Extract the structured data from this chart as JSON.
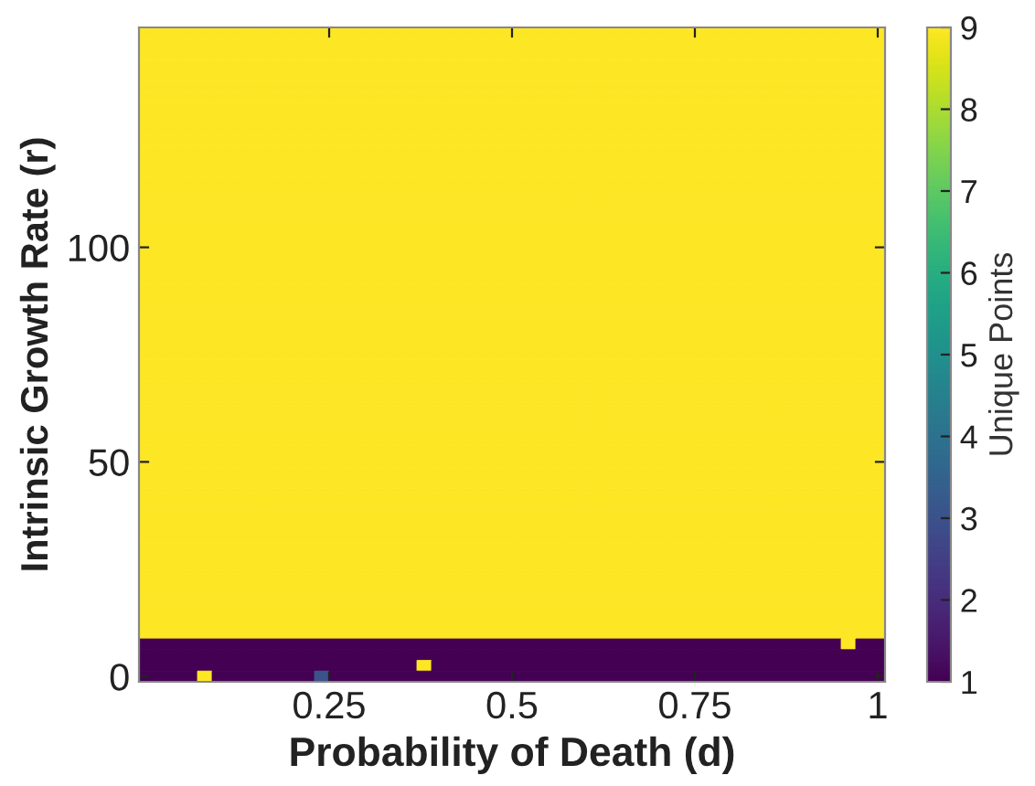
{
  "chart_data": {
    "type": "heatmap",
    "xlabel": "Probability of Death (d)",
    "ylabel": "Intrinsic Growth Rate (r)",
    "clabel": "Unique Points",
    "x": [
      0,
      0.02,
      0.04,
      0.06,
      0.08,
      0.1,
      0.12,
      0.14,
      0.16,
      0.18,
      0.2,
      0.22,
      0.24,
      0.26,
      0.28,
      0.3,
      0.32,
      0.34,
      0.36,
      0.38,
      0.4,
      0.42,
      0.44,
      0.46,
      0.48,
      0.5,
      0.52,
      0.54,
      0.56,
      0.58,
      0.6,
      0.62,
      0.64,
      0.66,
      0.68,
      0.7,
      0.72,
      0.74,
      0.76,
      0.78,
      0.8,
      0.82,
      0.84,
      0.86,
      0.88,
      0.9,
      0.92,
      0.94,
      0.96,
      0.98,
      1
    ],
    "xlim": [
      -0.01,
      1.01
    ],
    "xticks": [
      0.25,
      0.5,
      0.75,
      1
    ],
    "ylim": [
      -1.25,
      151.25
    ],
    "yticks": [
      0,
      50,
      100
    ],
    "clim": [
      1,
      9
    ],
    "cticks": [
      1,
      2,
      3,
      4,
      5,
      6,
      7,
      8,
      9
    ],
    "cells": [
      [
        9,
        9,
        9,
        9,
        9,
        9,
        9,
        9,
        9,
        9,
        9,
        9,
        9,
        9,
        9,
        9,
        9,
        9,
        9,
        9,
        9,
        9,
        9,
        9,
        9,
        9,
        9,
        9,
        9,
        9,
        9,
        9,
        9,
        9,
        9,
        9,
        9,
        9,
        9,
        9,
        9,
        9,
        9,
        9,
        9,
        9,
        9,
        9,
        9,
        9,
        9
      ],
      [
        9,
        9,
        9,
        9,
        9,
        9,
        9,
        9,
        9,
        9,
        9,
        9,
        9,
        9,
        9,
        9,
        9,
        9,
        9,
        9,
        9,
        9,
        9,
        9,
        9,
        9,
        9,
        9,
        9,
        9,
        9,
        9,
        9,
        9,
        9,
        9,
        9,
        9,
        9,
        9,
        9,
        9,
        9,
        9,
        9,
        9,
        9,
        9,
        9,
        9,
        9
      ],
      [
        9,
        9,
        9,
        9,
        9,
        9,
        9,
        9,
        9,
        9,
        9,
        9,
        9,
        9,
        9,
        9,
        9,
        9,
        9,
        9,
        9,
        9,
        9,
        9,
        9,
        9,
        9,
        9,
        9,
        9,
        9,
        9,
        9,
        9,
        9,
        9,
        9,
        9,
        9,
        9,
        9,
        9,
        9,
        9,
        9,
        9,
        9,
        9,
        9,
        9,
        9
      ],
      [
        9,
        9,
        9,
        9,
        9,
        9,
        9,
        9,
        9,
        9,
        9,
        9,
        9,
        9,
        9,
        9,
        9,
        9,
        9,
        9,
        9,
        9,
        9,
        9,
        9,
        9,
        9,
        9,
        9,
        9,
        9,
        9,
        9,
        9,
        9,
        9,
        9,
        9,
        9,
        9,
        9,
        9,
        9,
        9,
        9,
        9,
        9,
        9,
        9,
        9,
        9
      ],
      [
        9,
        9,
        9,
        9,
        9,
        9,
        9,
        9,
        9,
        9,
        9,
        9,
        9,
        9,
        9,
        9,
        9,
        9,
        9,
        9,
        9,
        9,
        9,
        9,
        9,
        9,
        9,
        9,
        9,
        9,
        9,
        9,
        9,
        9,
        9,
        9,
        9,
        9,
        9,
        9,
        9,
        9,
        9,
        9,
        9,
        9,
        9,
        9,
        9,
        9,
        9
      ],
      [
        9,
        9,
        9,
        9,
        9,
        9,
        9,
        9,
        9,
        9,
        9,
        9,
        9,
        9,
        9,
        9,
        9,
        9,
        9,
        9,
        9,
        9,
        9,
        9,
        9,
        9,
        9,
        9,
        9,
        9,
        9,
        9,
        9,
        9,
        9,
        9,
        9,
        9,
        9,
        9,
        9,
        9,
        9,
        9,
        9,
        9,
        9,
        9,
        9,
        9,
        9
      ],
      [
        9,
        9,
        9,
        9,
        9,
        9,
        9,
        9,
        9,
        9,
        9,
        9,
        9,
        9,
        9,
        9,
        9,
        9,
        9,
        9,
        9,
        9,
        9,
        9,
        9,
        9,
        9,
        9,
        9,
        9,
        9,
        9,
        9,
        9,
        9,
        9,
        9,
        9,
        9,
        9,
        9,
        9,
        9,
        9,
        9,
        9,
        9,
        9,
        9,
        9,
        9
      ],
      [
        9,
        9,
        9,
        9,
        9,
        9,
        9,
        9,
        9,
        9,
        9,
        9,
        9,
        9,
        9,
        9,
        9,
        9,
        9,
        9,
        9,
        9,
        9,
        9,
        9,
        9,
        9,
        9,
        9,
        9,
        9,
        9,
        9,
        9,
        9,
        9,
        9,
        9,
        9,
        9,
        9,
        9,
        9,
        9,
        9,
        9,
        9,
        9,
        9,
        9,
        9
      ],
      [
        9,
        9,
        9,
        9,
        9,
        9,
        9,
        9,
        9,
        9,
        9,
        9,
        9,
        9,
        9,
        9,
        9,
        9,
        9,
        9,
        9,
        9,
        9,
        9,
        9,
        9,
        9,
        9,
        9,
        9,
        9,
        9,
        9,
        9,
        9,
        9,
        9,
        9,
        9,
        9,
        9,
        9,
        9,
        9,
        9,
        9,
        9,
        9,
        9,
        9,
        9
      ],
      [
        9,
        9,
        9,
        9,
        9,
        9,
        9,
        9,
        9,
        9,
        9,
        9,
        9,
        9,
        9,
        9,
        9,
        9,
        9,
        9,
        9,
        9,
        9,
        9,
        9,
        9,
        9,
        9,
        9,
        9,
        9,
        9,
        9,
        9,
        9,
        9,
        9,
        9,
        9,
        9,
        9,
        9,
        9,
        9,
        9,
        9,
        9,
        9,
        9,
        9,
        9
      ],
      [
        9,
        9,
        9,
        9,
        9,
        9,
        9,
        9,
        9,
        9,
        9,
        9,
        9,
        9,
        9,
        9,
        9,
        9,
        9,
        9,
        9,
        9,
        9,
        9,
        9,
        9,
        9,
        9,
        9,
        9,
        9,
        9,
        9,
        9,
        9,
        9,
        9,
        9,
        9,
        9,
        9,
        9,
        9,
        9,
        9,
        9,
        9,
        9,
        9,
        9,
        9
      ],
      [
        9,
        9,
        9,
        9,
        9,
        9,
        9,
        9,
        9,
        9,
        9,
        9,
        9,
        9,
        9,
        9,
        9,
        9,
        9,
        9,
        9,
        9,
        9,
        9,
        9,
        9,
        9,
        9,
        9,
        9,
        9,
        9,
        9,
        9,
        9,
        9,
        9,
        9,
        9,
        9,
        9,
        9,
        9,
        9,
        9,
        9,
        9,
        9,
        9,
        9,
        9
      ],
      [
        9,
        9,
        9,
        9,
        9,
        9,
        9,
        9,
        9,
        9,
        9,
        9,
        9,
        9,
        9,
        9,
        9,
        9,
        9,
        9,
        9,
        9,
        9,
        9,
        9,
        9,
        9,
        9,
        9,
        9,
        9,
        9,
        9,
        9,
        9,
        9,
        9,
        9,
        9,
        9,
        9,
        9,
        9,
        9,
        9,
        9,
        9,
        9,
        9,
        9,
        9
      ],
      [
        9,
        9,
        9,
        9,
        9,
        9,
        9,
        9,
        9,
        9,
        9,
        9,
        9,
        9,
        9,
        9,
        9,
        9,
        9,
        9,
        9,
        9,
        9,
        9,
        9,
        9,
        9,
        9,
        9,
        9,
        9,
        9,
        9,
        9,
        9,
        9,
        9,
        9,
        9,
        9,
        9,
        9,
        9,
        9,
        9,
        9,
        9,
        9,
        9,
        9,
        9
      ],
      [
        9,
        9,
        9,
        9,
        9,
        9,
        9,
        9,
        9,
        9,
        9,
        9,
        9,
        9,
        9,
        9,
        9,
        9,
        9,
        9,
        9,
        9,
        9,
        9,
        9,
        9,
        9,
        9,
        9,
        9,
        9,
        9,
        9,
        9,
        9,
        9,
        9,
        9,
        9,
        9,
        9,
        9,
        9,
        9,
        9,
        9,
        9,
        9,
        9,
        9,
        9
      ],
      [
        9,
        9,
        9,
        9,
        9,
        9,
        9,
        9,
        9,
        9,
        9,
        9,
        9,
        9,
        9,
        9,
        9,
        9,
        9,
        9,
        9,
        9,
        9,
        9,
        9,
        9,
        9,
        9,
        9,
        9,
        9,
        9,
        9,
        9,
        9,
        9,
        9,
        9,
        9,
        9,
        9,
        9,
        9,
        9,
        9,
        9,
        9,
        9,
        9,
        9,
        9
      ],
      [
        9,
        9,
        9,
        9,
        9,
        9,
        9,
        9,
        9,
        9,
        9,
        9,
        9,
        9,
        9,
        9,
        9,
        9,
        9,
        9,
        9,
        9,
        9,
        9,
        9,
        9,
        9,
        9,
        9,
        9,
        9,
        9,
        9,
        9,
        9,
        9,
        9,
        9,
        9,
        9,
        9,
        9,
        9,
        9,
        9,
        9,
        9,
        9,
        9,
        9,
        9
      ],
      [
        9,
        9,
        9,
        9,
        9,
        9,
        9,
        9,
        9,
        9,
        9,
        9,
        9,
        9,
        9,
        9,
        9,
        9,
        9,
        9,
        9,
        9,
        9,
        9,
        9,
        9,
        9,
        9,
        9,
        9,
        9,
        9,
        9,
        9,
        9,
        9,
        9,
        9,
        9,
        9,
        9,
        9,
        9,
        9,
        9,
        9,
        9,
        9,
        9,
        9,
        9
      ],
      [
        9,
        9,
        9,
        9,
        9,
        9,
        9,
        9,
        9,
        9,
        9,
        9,
        9,
        9,
        9,
        9,
        9,
        9,
        9,
        9,
        9,
        9,
        9,
        9,
        9,
        9,
        9,
        9,
        9,
        9,
        9,
        9,
        9,
        9,
        9,
        9,
        9,
        9,
        9,
        9,
        9,
        9,
        9,
        9,
        9,
        9,
        9,
        9,
        9,
        9,
        9
      ],
      [
        9,
        9,
        9,
        9,
        9,
        9,
        9,
        9,
        9,
        9,
        9,
        9,
        9,
        9,
        9,
        9,
        9,
        9,
        9,
        9,
        9,
        9,
        9,
        9,
        9,
        9,
        9,
        9,
        9,
        9,
        9,
        9,
        9,
        9,
        9,
        9,
        9,
        9,
        9,
        9,
        9,
        9,
        9,
        9,
        9,
        9,
        9,
        9,
        9,
        9,
        9
      ],
      [
        9,
        9,
        9,
        9,
        9,
        9,
        9,
        9,
        9,
        9,
        9,
        9,
        9,
        9,
        9,
        9,
        9,
        9,
        9,
        9,
        9,
        9,
        9,
        9,
        9,
        9,
        9,
        9,
        9,
        9,
        9,
        9,
        9,
        9,
        9,
        9,
        9,
        9,
        9,
        9,
        9,
        9,
        9,
        9,
        9,
        9,
        9,
        9,
        9,
        9,
        9
      ],
      [
        9,
        9,
        9,
        9,
        9,
        9,
        9,
        9,
        9,
        9,
        9,
        9,
        9,
        9,
        9,
        9,
        9,
        9,
        9,
        9,
        9,
        9,
        9,
        9,
        9,
        9,
        9,
        9,
        9,
        9,
        9,
        9,
        9,
        9,
        9,
        9,
        9,
        9,
        9,
        9,
        9,
        9,
        9,
        9,
        9,
        9,
        9,
        9,
        9,
        9,
        9
      ],
      [
        9,
        9,
        9,
        9,
        9,
        9,
        9,
        9,
        9,
        9,
        9,
        9,
        9,
        9,
        9,
        9,
        9,
        9,
        9,
        9,
        9,
        9,
        9,
        9,
        9,
        9,
        9,
        9,
        9,
        9,
        9,
        9,
        9,
        9,
        9,
        9,
        9,
        9,
        9,
        9,
        9,
        9,
        9,
        9,
        9,
        9,
        9,
        9,
        9,
        9,
        9
      ],
      [
        9,
        9,
        9,
        9,
        9,
        9,
        9,
        9,
        9,
        9,
        9,
        9,
        9,
        9,
        9,
        9,
        9,
        9,
        9,
        9,
        9,
        9,
        9,
        9,
        9,
        9,
        9,
        9,
        9,
        9,
        9,
        9,
        9,
        9,
        9,
        9,
        9,
        9,
        9,
        9,
        9,
        9,
        9,
        9,
        9,
        9,
        9,
        9,
        9,
        9,
        9
      ],
      [
        9,
        9,
        9,
        9,
        9,
        9,
        9,
        9,
        9,
        9,
        9,
        9,
        9,
        9,
        9,
        9,
        9,
        9,
        9,
        9,
        9,
        9,
        9,
        9,
        9,
        9,
        9,
        9,
        9,
        9,
        9,
        9,
        9,
        9,
        9,
        9,
        9,
        9,
        9,
        9,
        9,
        9,
        9,
        9,
        9,
        9,
        9,
        9,
        9,
        9,
        9
      ],
      [
        9,
        9,
        9,
        9,
        9,
        9,
        9,
        9,
        9,
        9,
        9,
        9,
        9,
        9,
        9,
        9,
        9,
        9,
        9,
        9,
        9,
        9,
        9,
        9,
        9,
        9,
        9,
        9,
        9,
        9,
        9,
        9,
        9,
        9,
        9,
        9,
        9,
        9,
        9,
        9,
        9,
        9,
        9,
        9,
        9,
        9,
        9,
        9,
        9,
        9,
        9
      ],
      [
        9,
        9,
        9,
        9,
        9,
        9,
        9,
        9,
        9,
        9,
        9,
        9,
        9,
        9,
        9,
        9,
        9,
        9,
        9,
        9,
        9,
        9,
        9,
        9,
        9,
        9,
        9,
        9,
        9,
        9,
        9,
        9,
        9,
        9,
        9,
        9,
        9,
        9,
        9,
        9,
        9,
        9,
        9,
        9,
        9,
        9,
        9,
        9,
        9,
        9,
        9
      ],
      [
        9,
        9,
        9,
        9,
        9,
        9,
        9,
        9,
        9,
        9,
        9,
        9,
        9,
        9,
        9,
        9,
        9,
        9,
        9,
        9,
        9,
        9,
        9,
        9,
        9,
        9,
        9,
        9,
        9,
        9,
        9,
        9,
        9,
        9,
        9,
        9,
        9,
        9,
        9,
        9,
        9,
        9,
        9,
        9,
        9,
        9,
        9,
        9,
        9,
        9,
        9
      ],
      [
        9,
        9,
        9,
        9,
        9,
        9,
        9,
        9,
        9,
        9,
        9,
        9,
        9,
        9,
        9,
        9,
        9,
        9,
        9,
        9,
        9,
        9,
        9,
        9,
        9,
        9,
        9,
        9,
        9,
        9,
        9,
        9,
        9,
        9,
        9,
        9,
        9,
        9,
        9,
        9,
        9,
        9,
        9,
        9,
        9,
        9,
        9,
        9,
        9,
        9,
        9
      ],
      [
        9,
        9,
        9,
        9,
        9,
        9,
        9,
        9,
        9,
        9,
        9,
        9,
        9,
        9,
        9,
        9,
        9,
        9,
        9,
        9,
        9,
        9,
        9,
        9,
        9,
        9,
        9,
        9,
        9,
        9,
        9,
        9,
        9,
        9,
        9,
        9,
        9,
        9,
        9,
        9,
        9,
        9,
        9,
        9,
        9,
        9,
        9,
        9,
        9,
        9,
        9
      ],
      [
        9,
        9,
        9,
        9,
        9,
        9,
        9,
        9,
        9,
        9,
        9,
        9,
        9,
        9,
        9,
        9,
        9,
        9,
        9,
        9,
        9,
        9,
        9,
        9,
        9,
        9,
        9,
        9,
        9,
        9,
        9,
        9,
        9,
        9,
        9,
        9,
        9,
        9,
        9,
        9,
        9,
        9,
        9,
        9,
        9,
        9,
        9,
        9,
        9,
        9,
        9
      ],
      [
        9,
        9,
        9,
        9,
        9,
        9,
        9,
        9,
        9,
        9,
        9,
        9,
        9,
        9,
        9,
        9,
        9,
        9,
        9,
        9,
        9,
        9,
        9,
        9,
        9,
        9,
        9,
        9,
        9,
        9,
        9,
        9,
        9,
        9,
        9,
        9,
        9,
        9,
        9,
        9,
        9,
        9,
        9,
        9,
        9,
        9,
        9,
        9,
        9,
        9,
        9
      ],
      [
        9,
        9,
        9,
        9,
        9,
        9,
        9,
        9,
        9,
        9,
        9,
        9,
        9,
        9,
        9,
        9,
        9,
        9,
        9,
        9,
        9,
        9,
        9,
        9,
        9,
        9,
        9,
        9,
        9,
        9,
        9,
        9,
        9,
        9,
        9,
        9,
        9,
        9,
        9,
        9,
        9,
        9,
        9,
        9,
        9,
        9,
        9,
        9,
        9,
        9,
        9
      ],
      [
        9,
        9,
        9,
        9,
        9,
        9,
        9,
        9,
        9,
        9,
        9,
        9,
        9,
        9,
        9,
        9,
        9,
        9,
        9,
        9,
        9,
        9,
        9,
        9,
        9,
        9,
        9,
        9,
        9,
        9,
        9,
        9,
        9,
        9,
        9,
        9,
        9,
        9,
        9,
        9,
        9,
        9,
        9,
        9,
        9,
        9,
        9,
        9,
        9,
        9,
        9
      ],
      [
        9,
        9,
        9,
        9,
        9,
        9,
        9,
        9,
        9,
        9,
        9,
        9,
        9,
        9,
        9,
        9,
        9,
        9,
        9,
        9,
        9,
        9,
        9,
        9,
        9,
        9,
        9,
        9,
        9,
        9,
        9,
        9,
        9,
        9,
        9,
        9,
        9,
        9,
        9,
        9,
        9,
        9,
        9,
        9,
        9,
        9,
        9,
        9,
        9,
        9,
        9
      ],
      [
        9,
        9,
        9,
        9,
        9,
        9,
        9,
        9,
        9,
        9,
        9,
        9,
        9,
        9,
        9,
        9,
        9,
        9,
        9,
        9,
        9,
        9,
        9,
        9,
        9,
        9,
        9,
        9,
        9,
        9,
        9,
        9,
        9,
        9,
        9,
        9,
        9,
        9,
        9,
        9,
        9,
        9,
        9,
        9,
        9,
        9,
        9,
        9,
        9,
        9,
        9
      ],
      [
        9,
        9,
        9,
        9,
        9,
        9,
        9,
        9,
        9,
        9,
        9,
        9,
        9,
        9,
        9,
        9,
        9,
        9,
        9,
        9,
        9,
        9,
        9,
        9,
        9,
        9,
        9,
        9,
        9,
        9,
        9,
        9,
        9,
        9,
        9,
        9,
        9,
        9,
        9,
        9,
        9,
        9,
        9,
        9,
        9,
        9,
        9,
        9,
        9,
        9,
        9
      ],
      [
        9,
        9,
        9,
        9,
        9,
        9,
        9,
        9,
        9,
        9,
        9,
        9,
        9,
        9,
        9,
        9,
        9,
        9,
        9,
        9,
        9,
        9,
        9,
        9,
        9,
        9,
        9,
        9,
        9,
        9,
        9,
        9,
        9,
        9,
        9,
        9,
        9,
        9,
        9,
        9,
        9,
        9,
        9,
        9,
        9,
        9,
        9,
        9,
        9,
        9,
        9
      ],
      [
        9,
        9,
        9,
        9,
        9,
        9,
        9,
        9,
        9,
        9,
        9,
        9,
        9,
        9,
        9,
        9,
        9,
        9,
        9,
        9,
        9,
        9,
        9,
        9,
        9,
        9,
        9,
        9,
        9,
        9,
        9,
        9,
        9,
        9,
        9,
        9,
        9,
        9,
        9,
        9,
        9,
        9,
        9,
        9,
        9,
        9,
        9,
        9,
        9,
        9,
        9
      ],
      [
        9,
        9,
        9,
        9,
        9,
        9,
        9,
        9,
        9,
        9,
        9,
        9,
        9,
        9,
        9,
        9,
        9,
        9,
        9,
        9,
        9,
        9,
        9,
        9,
        9,
        9,
        9,
        9,
        9,
        9,
        9,
        9,
        9,
        9,
        9,
        9,
        9,
        9,
        9,
        9,
        9,
        9,
        9,
        9,
        9,
        9,
        9,
        9,
        9,
        9,
        9
      ],
      [
        9,
        9,
        9,
        9,
        9,
        9,
        9,
        9,
        9,
        9,
        9,
        9,
        9,
        9,
        9,
        9,
        9,
        9,
        9,
        9,
        9,
        9,
        9,
        9,
        9,
        9,
        9,
        9,
        9,
        9,
        9,
        9,
        9,
        9,
        9,
        9,
        9,
        9,
        9,
        9,
        9,
        9,
        9,
        9,
        9,
        9,
        9,
        9,
        9,
        9,
        9
      ],
      [
        9,
        9,
        9,
        9,
        9,
        9,
        9,
        9,
        9,
        9,
        9,
        9,
        9,
        9,
        9,
        9,
        9,
        9,
        9,
        9,
        9,
        9,
        9,
        9,
        9,
        9,
        9,
        9,
        9,
        9,
        9,
        9,
        9,
        9,
        9,
        9,
        9,
        9,
        9,
        9,
        9,
        9,
        9,
        9,
        9,
        9,
        9,
        9,
        9,
        9,
        9
      ],
      [
        9,
        9,
        9,
        9,
        9,
        9,
        9,
        9,
        9,
        9,
        9,
        9,
        9,
        9,
        9,
        9,
        9,
        9,
        9,
        9,
        9,
        9,
        9,
        9,
        9,
        9,
        9,
        9,
        9,
        9,
        9,
        9,
        9,
        9,
        9,
        9,
        9,
        9,
        9,
        9,
        9,
        9,
        9,
        9,
        9,
        9,
        9,
        9,
        9,
        9,
        9
      ],
      [
        9,
        9,
        9,
        9,
        9,
        9,
        9,
        9,
        9,
        9,
        9,
        9,
        9,
        9,
        9,
        9,
        9,
        9,
        9,
        9,
        9,
        9,
        9,
        9,
        9,
        9,
        9,
        9,
        9,
        9,
        9,
        9,
        9,
        9,
        9,
        9,
        9,
        9,
        9,
        9,
        9,
        9,
        9,
        9,
        9,
        9,
        9,
        9,
        9,
        9,
        9
      ],
      [
        9,
        9,
        9,
        9,
        9,
        9,
        9,
        9,
        9,
        9,
        9,
        9,
        9,
        9,
        9,
        9,
        9,
        9,
        9,
        9,
        9,
        9,
        9,
        9,
        9,
        9,
        9,
        9,
        9,
        9,
        9,
        9,
        9,
        9,
        9,
        9,
        9,
        9,
        9,
        9,
        9,
        9,
        9,
        9,
        9,
        9,
        9,
        9,
        9,
        9,
        9
      ],
      [
        9,
        9,
        9,
        9,
        9,
        9,
        9,
        9,
        9,
        9,
        9,
        9,
        9,
        9,
        9,
        9,
        9,
        9,
        9,
        9,
        9,
        9,
        9,
        9,
        9,
        9,
        9,
        9,
        9,
        9,
        9,
        9,
        9,
        9,
        9,
        9,
        9,
        9,
        9,
        9,
        9,
        9,
        9,
        9,
        9,
        9,
        9,
        9,
        9,
        9,
        9
      ],
      [
        9,
        9,
        9,
        9,
        9,
        9,
        9,
        9,
        9,
        9,
        9,
        9,
        9,
        9,
        9,
        9,
        9,
        9,
        9,
        9,
        9,
        9,
        9,
        9,
        9,
        9,
        9,
        9,
        9,
        9,
        9,
        9,
        9,
        9,
        9,
        9,
        9,
        9,
        9,
        9,
        9,
        9,
        9,
        9,
        9,
        9,
        9,
        9,
        9,
        9,
        9
      ],
      [
        9,
        9,
        9,
        9,
        9,
        9,
        9,
        9,
        9,
        9,
        9,
        9,
        9,
        9,
        9,
        9,
        9,
        9,
        9,
        9,
        9,
        9,
        9,
        9,
        9,
        9,
        9,
        9,
        9,
        9,
        9,
        9,
        9,
        9,
        9,
        9,
        9,
        9,
        9,
        9,
        9,
        9,
        9,
        9,
        9,
        9,
        9,
        9,
        9,
        9,
        9
      ],
      [
        9,
        9,
        9,
        9,
        9,
        9,
        9,
        9,
        9,
        9,
        9,
        9,
        9,
        9,
        9,
        9,
        9,
        9,
        9,
        9,
        9,
        9,
        9,
        9,
        9,
        9,
        9,
        9,
        9,
        9,
        9,
        9,
        9,
        9,
        9,
        9,
        9,
        9,
        9,
        9,
        9,
        9,
        9,
        9,
        9,
        9,
        9,
        9,
        9,
        9,
        9
      ],
      [
        9,
        9,
        9,
        9,
        9,
        9,
        9,
        9,
        9,
        9,
        9,
        9,
        9,
        9,
        9,
        9,
        9,
        9,
        9,
        9,
        9,
        9,
        9,
        9,
        9,
        9,
        9,
        9,
        9,
        9,
        9,
        9,
        9,
        9,
        9,
        9,
        9,
        9,
        9,
        9,
        9,
        9,
        9,
        9,
        9,
        9,
        9,
        9,
        9,
        9,
        9
      ],
      [
        9,
        9,
        9,
        9,
        9,
        9,
        9,
        9,
        9,
        9,
        9,
        9,
        9,
        9,
        9,
        9,
        9,
        9,
        9,
        9,
        9,
        9,
        9,
        9,
        9,
        9,
        9,
        9,
        9,
        9,
        9,
        9,
        9,
        9,
        9,
        9,
        9,
        9,
        9,
        9,
        9,
        9,
        9,
        9,
        9,
        9,
        9,
        9,
        9,
        9,
        9
      ],
      [
        9,
        9,
        9,
        9,
        9,
        9,
        9,
        9,
        9,
        9,
        9,
        9,
        9,
        9,
        9,
        9,
        9,
        9,
        9,
        9,
        9,
        9,
        9,
        9,
        9,
        9,
        9,
        9,
        9,
        9,
        9,
        9,
        9,
        9,
        9,
        9,
        9,
        9,
        9,
        9,
        9,
        9,
        9,
        9,
        9,
        9,
        9,
        9,
        9,
        9,
        9
      ],
      [
        9,
        9,
        9,
        9,
        9,
        9,
        9,
        9,
        9,
        9,
        9,
        9,
        9,
        9,
        9,
        9,
        9,
        9,
        9,
        9,
        9,
        9,
        9,
        9,
        9,
        9,
        9,
        9,
        9,
        9,
        9,
        9,
        9,
        9,
        9,
        9,
        9,
        9,
        9,
        9,
        9,
        9,
        9,
        9,
        9,
        9,
        9,
        9,
        9,
        9,
        9
      ],
      [
        9,
        9,
        9,
        9,
        9,
        9,
        9,
        9,
        9,
        9,
        9,
        9,
        9,
        9,
        9,
        9,
        9,
        9,
        9,
        9,
        9,
        9,
        9,
        9,
        9,
        9,
        9,
        9,
        9,
        9,
        9,
        9,
        9,
        9,
        9,
        9,
        9,
        9,
        9,
        9,
        9,
        9,
        9,
        9,
        9,
        9,
        9,
        9,
        9,
        9,
        9
      ],
      [
        9,
        9,
        9,
        9,
        9,
        9,
        9,
        9,
        9,
        9,
        9,
        9,
        9,
        9,
        9,
        9,
        9,
        9,
        9,
        9,
        9,
        9,
        9,
        9,
        9,
        9,
        9,
        9,
        9,
        9,
        9,
        9,
        9,
        9,
        9,
        9,
        9,
        9,
        9,
        9,
        9,
        9,
        9,
        9,
        9,
        9,
        9,
        9,
        9,
        9,
        9
      ],
      [
        9,
        9,
        9,
        9,
        9,
        9,
        9,
        9,
        9,
        9,
        9,
        9,
        9,
        9,
        9,
        9,
        9,
        9,
        9,
        9,
        9,
        9,
        9,
        9,
        9,
        9,
        9,
        9,
        9,
        9,
        9,
        9,
        9,
        9,
        9,
        9,
        9,
        9,
        9,
        9,
        9,
        9,
        9,
        9,
        9,
        9,
        9,
        9,
        9,
        9,
        9
      ],
      [
        9,
        9,
        9,
        9,
        9,
        9,
        9,
        9,
        9,
        9,
        9,
        9,
        9,
        9,
        9,
        9,
        9,
        9,
        9,
        9,
        9,
        9,
        9,
        9,
        9,
        9,
        9,
        9,
        9,
        9,
        9,
        9,
        9,
        9,
        9,
        9,
        9,
        9,
        9,
        9,
        9,
        9,
        9,
        9,
        9,
        9,
        9,
        9,
        9,
        9,
        9
      ],
      [
        1,
        1,
        1,
        1,
        1,
        1,
        1,
        1,
        1,
        1,
        1,
        1,
        1,
        1,
        1,
        1,
        1,
        1,
        1,
        1,
        1,
        1,
        1,
        1,
        1,
        1,
        1,
        1,
        1,
        1,
        1,
        1,
        1,
        1,
        1,
        1,
        1,
        1,
        1,
        1,
        1,
        1,
        1,
        1,
        1,
        1,
        1,
        1,
        9,
        1,
        1
      ],
      [
        1,
        1,
        1,
        1,
        1,
        1,
        1,
        1,
        1,
        1,
        1,
        1,
        1,
        1,
        1,
        1,
        1,
        1,
        1,
        1,
        1,
        1,
        1,
        1,
        1,
        1,
        1,
        1,
        1,
        1,
        1,
        1,
        1,
        1,
        1,
        1,
        1,
        1,
        1,
        1,
        1,
        1,
        1,
        1,
        1,
        1,
        1,
        1,
        1,
        1,
        1
      ],
      [
        1,
        1,
        1,
        1,
        1,
        1,
        1,
        1,
        1,
        1,
        1,
        1,
        1,
        1,
        1,
        1,
        1,
        1,
        1,
        9,
        1,
        1,
        1,
        1,
        1,
        1,
        1,
        1,
        1,
        1,
        1,
        1,
        1,
        1,
        1,
        1,
        1,
        1,
        1,
        1,
        1,
        1,
        1,
        1,
        1,
        1,
        1,
        1,
        1,
        1,
        1
      ],
      [
        1,
        1,
        1,
        1,
        9,
        1,
        1,
        1,
        1,
        1,
        1,
        1,
        3,
        1,
        1,
        1,
        1,
        1,
        1,
        1,
        1,
        1,
        1,
        1,
        1,
        1,
        1,
        1,
        1,
        1,
        1,
        1,
        1,
        1,
        1,
        1,
        1,
        1,
        1,
        1,
        1,
        1,
        1,
        1,
        1,
        1,
        1,
        1,
        1,
        1,
        1
      ]
    ]
  }
}
